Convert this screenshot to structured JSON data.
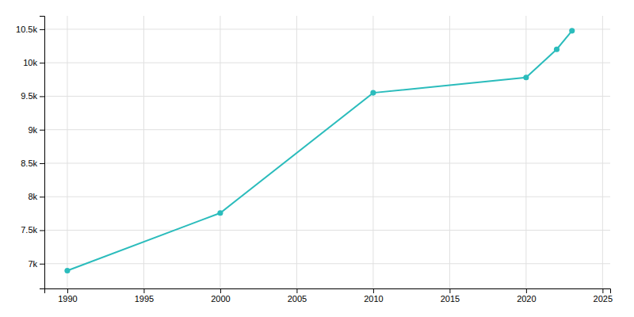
{
  "chart_data": {
    "type": "line",
    "x": [
      1990,
      2000,
      2010,
      2020,
      2022,
      2023
    ],
    "values": [
      6896,
      7757,
      9551,
      9780,
      10200,
      10477
    ],
    "color": "#2bbcbc",
    "marker": "circle",
    "xlim": [
      1988.5,
      2025.5
    ],
    "ylim": [
      6630,
      10700
    ],
    "xticks": [
      1990,
      1995,
      2000,
      2005,
      2010,
      2015,
      2020,
      2025
    ],
    "yticks": [
      {
        "value": 7000,
        "label": "7k"
      },
      {
        "value": 7500,
        "label": "7.5k"
      },
      {
        "value": 8000,
        "label": "8k"
      },
      {
        "value": 8500,
        "label": "8.5k"
      },
      {
        "value": 9000,
        "label": "9k"
      },
      {
        "value": 9500,
        "label": "9.5k"
      },
      {
        "value": 10000,
        "label": "10k"
      },
      {
        "value": 10500,
        "label": "10.5k"
      }
    ],
    "grid": true
  }
}
